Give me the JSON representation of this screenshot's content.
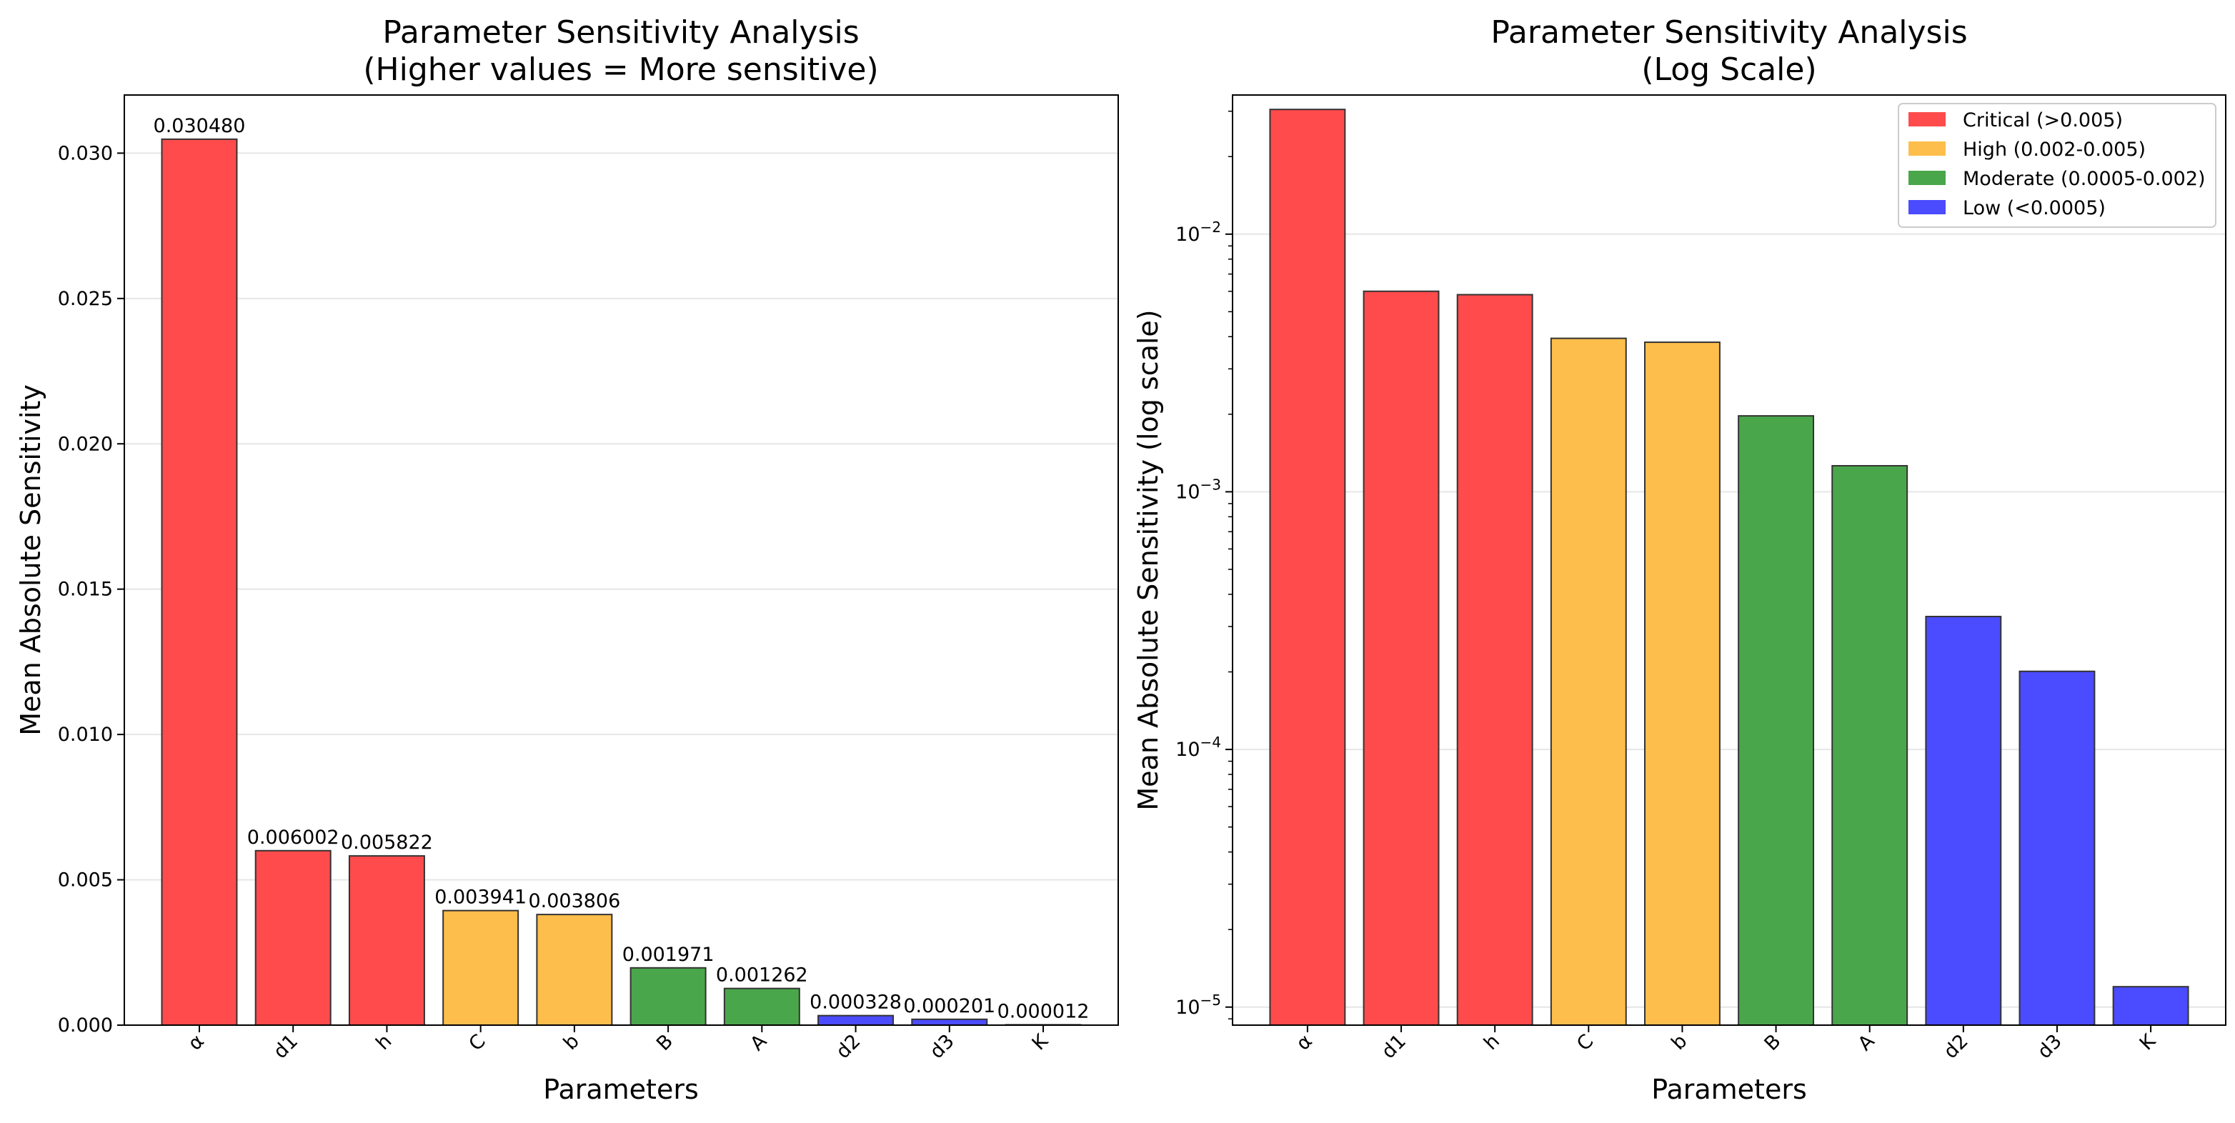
{
  "chart_data": [
    {
      "type": "bar",
      "title": [
        "Parameter Sensitivity Analysis",
        "(Higher values = More sensitive)"
      ],
      "xlabel": "Parameters",
      "ylabel": "Mean Absolute Sensitivity",
      "yscale": "linear",
      "ylim": [
        0,
        0.032
      ],
      "yticks": [
        0.0,
        0.005,
        0.01,
        0.015,
        0.02,
        0.025,
        0.03
      ],
      "ytick_labels": [
        "0.000",
        "0.005",
        "0.010",
        "0.015",
        "0.020",
        "0.025",
        "0.030"
      ],
      "grid": true,
      "categories": [
        "α",
        "d1",
        "h",
        "C",
        "b",
        "B",
        "A",
        "d2",
        "d3",
        "K"
      ],
      "values": [
        0.03048,
        0.006002,
        0.005822,
        0.003941,
        0.003806,
        0.001971,
        0.001262,
        0.000328,
        0.000201,
        1.2e-05
      ],
      "data_labels": [
        "0.030480",
        "0.006002",
        "0.005822",
        "0.003941",
        "0.003806",
        "0.001971",
        "0.001262",
        "0.000328",
        "0.000201",
        "0.000012"
      ],
      "bar_colors": [
        "#ff4b4b",
        "#ff4b4b",
        "#ff4b4b",
        "#febe4b",
        "#febe4b",
        "#4aa64a",
        "#4aa64a",
        "#4b4bff",
        "#4b4bff",
        "#4b4bff"
      ]
    },
    {
      "type": "bar",
      "title": [
        "Parameter Sensitivity Analysis",
        "(Log Scale)"
      ],
      "xlabel": "Parameters",
      "ylabel": "Mean Absolute Sensitivity (log scale)",
      "yscale": "log",
      "ylim_log10": [
        -5.07,
        -1.46
      ],
      "yticks_exp": [
        -5,
        -4,
        -3,
        -2
      ],
      "grid": true,
      "categories": [
        "α",
        "d1",
        "h",
        "C",
        "b",
        "B",
        "A",
        "d2",
        "d3",
        "K"
      ],
      "values": [
        0.03048,
        0.006002,
        0.005822,
        0.003941,
        0.003806,
        0.001971,
        0.001262,
        0.000328,
        0.000201,
        1.2e-05
      ],
      "bar_colors": [
        "#ff4b4b",
        "#ff4b4b",
        "#ff4b4b",
        "#febe4b",
        "#febe4b",
        "#4aa64a",
        "#4aa64a",
        "#4b4bff",
        "#4b4bff",
        "#4b4bff"
      ],
      "legend_position": "top-right",
      "legend": [
        {
          "label": "Critical (>0.005)",
          "color": "#ff4b4b"
        },
        {
          "label": "High (0.002-0.005)",
          "color": "#febe4b"
        },
        {
          "label": "Moderate (0.0005-0.002)",
          "color": "#4aa64a"
        },
        {
          "label": "Low (<0.0005)",
          "color": "#4b4bff"
        }
      ]
    }
  ],
  "colors": {
    "edge": "#333333",
    "grid": "#e6e6e6",
    "axis": "#000000"
  }
}
